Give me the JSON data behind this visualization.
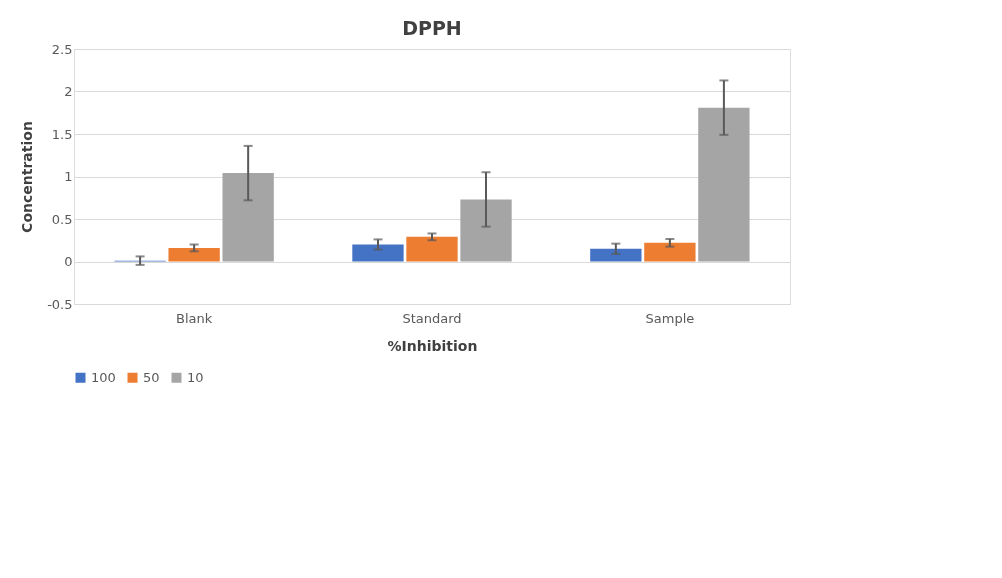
{
  "chart_data": {
    "type": "bar",
    "title": "DPPH",
    "xlabel": "%Inhibition",
    "ylabel": "Concentration",
    "categories": [
      "Blank",
      "Standard",
      "Sample"
    ],
    "series": [
      {
        "name": "100",
        "color": "#4472c4",
        "values": [
          0.01,
          0.2,
          0.15
        ],
        "errors": [
          0.05,
          0.06,
          0.06
        ]
      },
      {
        "name": "50",
        "color": "#ed7d31",
        "values": [
          0.16,
          0.29,
          0.22
        ],
        "errors": [
          0.04,
          0.04,
          0.045
        ]
      },
      {
        "name": "10",
        "color": "#a5a5a5",
        "values": [
          1.04,
          0.73,
          1.81
        ],
        "errors": [
          0.32,
          0.32,
          0.32
        ]
      }
    ],
    "ylim": [
      -0.5,
      2.5
    ],
    "yticks": [
      -0.5,
      0,
      0.5,
      1,
      1.5,
      2,
      2.5
    ],
    "grid": "y",
    "legend": "bottom"
  }
}
